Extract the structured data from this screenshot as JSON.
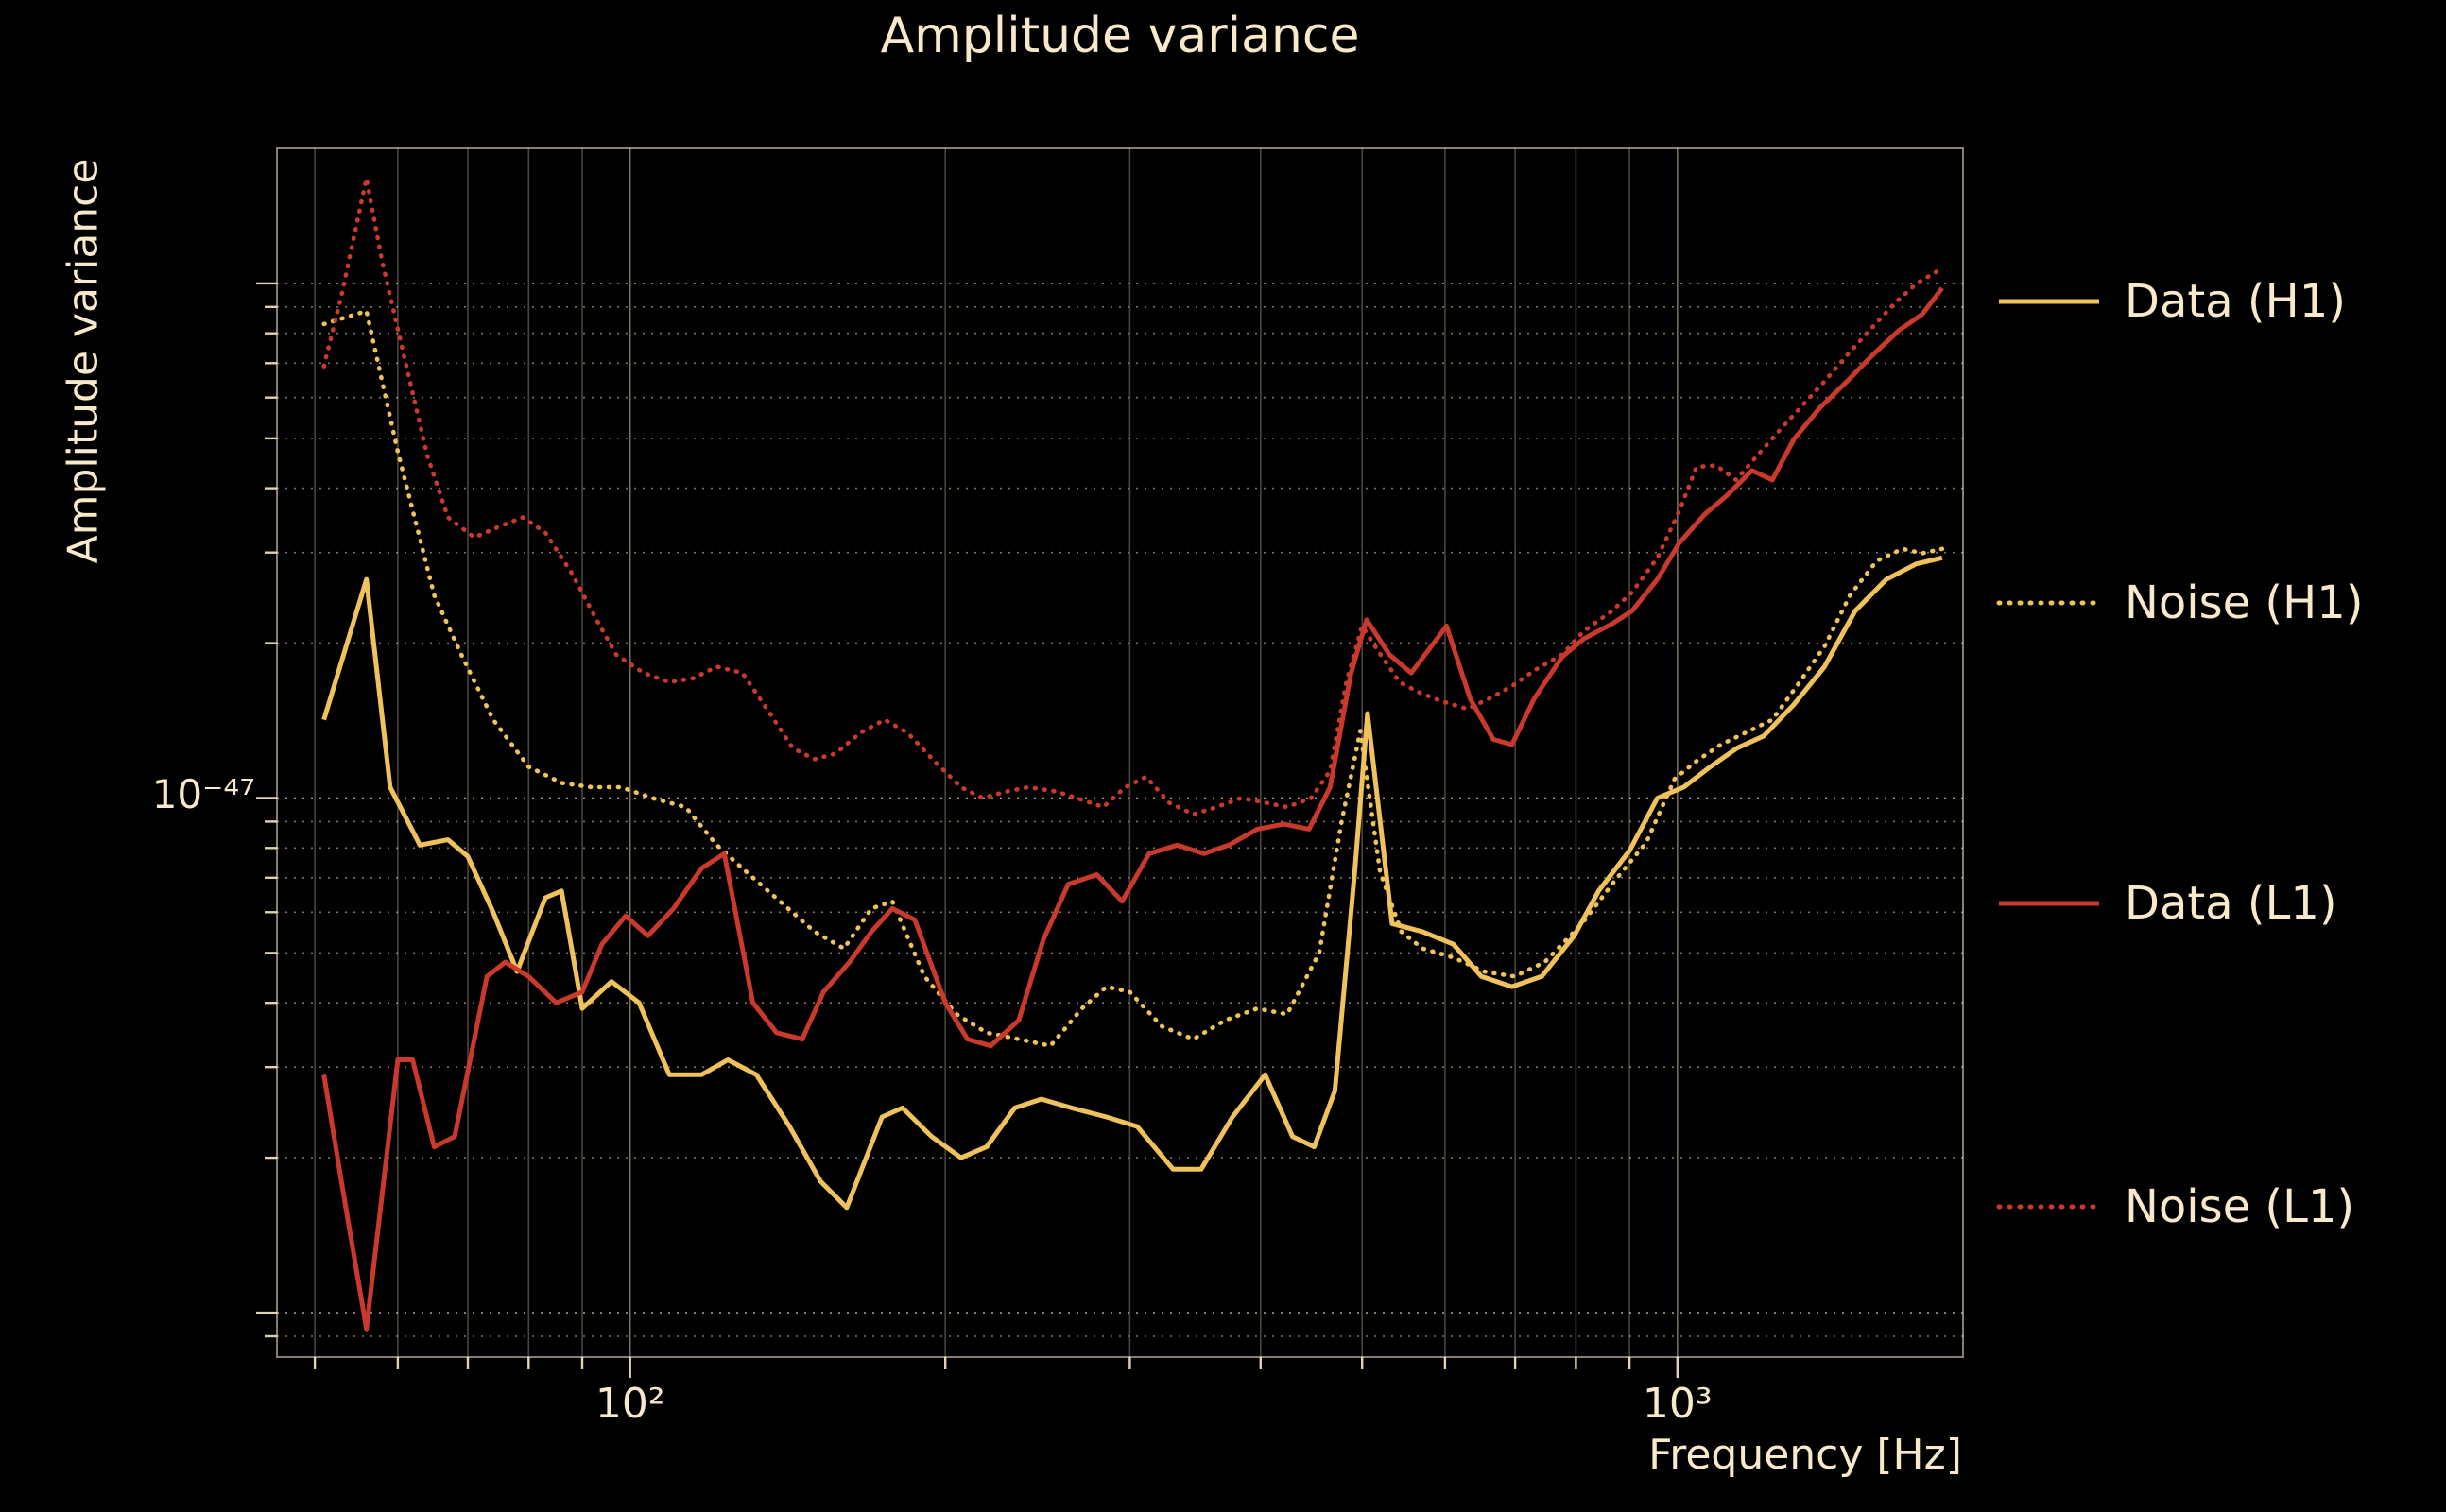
{
  "title": "Amplitude variance",
  "xlabel": "Frequency [Hz]",
  "ylabel": "Amplitude variance",
  "x_ticks": [
    {
      "value": 100,
      "label": "10²"
    },
    {
      "value": 1000,
      "label": "10³"
    }
  ],
  "y_ticks": [
    {
      "value_1e47": 1,
      "label": "10⁻⁴⁷"
    }
  ],
  "colors": {
    "background": "#000000",
    "text": "#f7e9c9",
    "grid": "#f7e9c9",
    "gold": "#efc25c",
    "red": "#c9392c"
  },
  "legend": [
    {
      "label": "Data (H1)",
      "color": "#efc25c",
      "linestyle": "solid"
    },
    {
      "label": "Noise (H1)",
      "color": "#efc25c",
      "linestyle": "dotted"
    },
    {
      "label": "Data (L1)",
      "color": "#c9392c",
      "linestyle": "solid"
    },
    {
      "label": "Noise (L1)",
      "color": "#c9392c",
      "linestyle": "dotted"
    }
  ],
  "chart_data": {
    "type": "line",
    "title": "Amplitude variance",
    "xlabel": "Frequency [Hz]",
    "ylabel": "Amplitude variance",
    "xscale": "log",
    "yscale": "log",
    "x_unit": "Hz",
    "y_unit": "1e-47",
    "xlim": [
      46,
      1874
    ],
    "ylim_1e47": [
      0.082,
      18.3
    ],
    "grid": {
      "x_lines": [
        50,
        60,
        70,
        80,
        90,
        100,
        200,
        300,
        400,
        500,
        600,
        700,
        800,
        900,
        1000
      ],
      "x_major": [
        100,
        1000
      ],
      "y_lines": [
        0.09,
        0.1,
        0.2,
        0.3,
        0.4,
        0.5,
        0.6,
        0.7,
        0.8,
        0.9,
        1,
        2,
        3,
        4,
        5,
        6,
        7,
        8,
        9,
        10
      ],
      "y_major": [
        0.1,
        1,
        10
      ],
      "legend_position": "right-outside"
    },
    "series": [
      {
        "name": "Data (H1)",
        "color": "#efc25c",
        "linestyle": "solid",
        "x": [
          51,
          56,
          59,
          63,
          67,
          70,
          74,
          78,
          83,
          86,
          90,
          96,
          102,
          109,
          117,
          124,
          132,
          142,
          152,
          161,
          174,
          182,
          194,
          207,
          219,
          233,
          247,
          264,
          285,
          305,
          330,
          351,
          376,
          404,
          429,
          450,
          471,
          492,
          506,
          534,
          571,
          611,
          650,
          695,
          742,
          797,
          841,
          900,
          957,
          1014,
          1075,
          1140,
          1209,
          1292,
          1382,
          1478,
          1583,
          1690,
          1790
        ],
        "y": [
          1.42,
          2.66,
          1.05,
          0.81,
          0.83,
          0.77,
          0.6,
          0.46,
          0.64,
          0.66,
          0.39,
          0.44,
          0.4,
          0.29,
          0.29,
          0.31,
          0.29,
          0.23,
          0.18,
          0.16,
          0.24,
          0.25,
          0.22,
          0.2,
          0.21,
          0.25,
          0.26,
          0.25,
          0.24,
          0.23,
          0.19,
          0.19,
          0.24,
          0.29,
          0.22,
          0.21,
          0.27,
          0.72,
          1.46,
          0.57,
          0.55,
          0.52,
          0.45,
          0.43,
          0.45,
          0.54,
          0.66,
          0.79,
          1.0,
          1.05,
          1.15,
          1.25,
          1.32,
          1.52,
          1.8,
          2.31,
          2.66,
          2.85,
          2.93
        ]
      },
      {
        "name": "Noise (H1)",
        "color": "#efc25c",
        "linestyle": "dotted",
        "x": [
          51,
          56,
          60,
          65,
          69,
          74,
          80,
          86,
          92,
          98,
          105,
          113,
          121,
          130,
          139,
          150,
          160,
          170,
          178,
          191,
          205,
          219,
          235,
          252,
          270,
          285,
          300,
          322,
          345,
          370,
          397,
          424,
          455,
          478,
          498,
          520,
          545,
          571,
          611,
          654,
          699,
          747,
          811,
          871,
          934,
          994,
          1043,
          1100,
          1162,
          1232,
          1300,
          1382,
          1462,
          1550,
          1640,
          1713,
          1790
        ],
        "y": [
          8.34,
          8.84,
          4.71,
          2.48,
          1.9,
          1.42,
          1.15,
          1.07,
          1.05,
          1.05,
          1.0,
          0.96,
          0.81,
          0.71,
          0.63,
          0.55,
          0.51,
          0.61,
          0.63,
          0.45,
          0.38,
          0.35,
          0.34,
          0.33,
          0.39,
          0.43,
          0.42,
          0.36,
          0.34,
          0.37,
          0.39,
          0.38,
          0.5,
          0.9,
          1.35,
          0.72,
          0.55,
          0.51,
          0.49,
          0.46,
          0.45,
          0.48,
          0.57,
          0.69,
          0.82,
          1.09,
          1.18,
          1.27,
          1.34,
          1.42,
          1.65,
          1.97,
          2.48,
          2.89,
          3.05,
          2.99,
          3.05
        ]
      },
      {
        "name": "Data (L1)",
        "color": "#c9392c",
        "linestyle": "solid",
        "x": [
          51,
          53,
          56,
          60,
          62,
          65,
          68,
          73,
          76,
          80,
          85,
          90,
          94,
          99,
          104,
          110,
          117,
          123,
          131,
          138,
          146,
          153,
          162,
          170,
          178,
          187,
          200,
          210,
          221,
          235,
          248,
          262,
          279,
          295,
          313,
          333,
          353,
          373,
          397,
          421,
          445,
          466,
          488,
          505,
          531,
          557,
          582,
          602,
          634,
          667,
          695,
          730,
          776,
          814,
          866,
          905,
          957,
          1004,
          1062,
          1115,
          1178,
          1232,
          1292,
          1368,
          1452,
          1535,
          1628,
          1713,
          1790
        ],
        "y": [
          0.29,
          0.18,
          0.093,
          0.31,
          0.31,
          0.21,
          0.22,
          0.45,
          0.48,
          0.45,
          0.4,
          0.42,
          0.52,
          0.59,
          0.54,
          0.61,
          0.73,
          0.78,
          0.4,
          0.35,
          0.34,
          0.42,
          0.48,
          0.55,
          0.61,
          0.58,
          0.4,
          0.34,
          0.33,
          0.37,
          0.53,
          0.68,
          0.71,
          0.63,
          0.78,
          0.81,
          0.78,
          0.81,
          0.87,
          0.89,
          0.87,
          1.05,
          1.75,
          2.22,
          1.9,
          1.75,
          1.97,
          2.16,
          1.56,
          1.3,
          1.27,
          1.56,
          1.88,
          2.04,
          2.18,
          2.31,
          2.66,
          3.13,
          3.56,
          3.87,
          4.33,
          4.15,
          4.98,
          5.73,
          6.45,
          7.25,
          8.11,
          8.71,
          9.79
        ]
      },
      {
        "name": "Noise (L1)",
        "color": "#c9392c",
        "linestyle": "dotted",
        "x": [
          51,
          53,
          56,
          58,
          61,
          64,
          67,
          71,
          75,
          79,
          83,
          88,
          93,
          97,
          103,
          109,
          115,
          121,
          128,
          136,
          143,
          150,
          157,
          166,
          175,
          184,
          196,
          207,
          217,
          229,
          240,
          255,
          267,
          283,
          297,
          311,
          327,
          345,
          363,
          383,
          404,
          424,
          447,
          466,
          483,
          500,
          518,
          543,
          568,
          597,
          630,
          661,
          695,
          730,
          776,
          814,
          866,
          905,
          957,
          1004,
          1043,
          1089,
          1138,
          1193,
          1257,
          1310,
          1382,
          1452,
          1535,
          1612,
          1690,
          1790
        ],
        "y": [
          6.9,
          9.46,
          16.0,
          11.0,
          7.06,
          4.64,
          3.51,
          3.21,
          3.37,
          3.51,
          3.28,
          2.73,
          2.21,
          1.9,
          1.75,
          1.68,
          1.71,
          1.8,
          1.75,
          1.46,
          1.25,
          1.19,
          1.22,
          1.34,
          1.42,
          1.34,
          1.17,
          1.05,
          1.0,
          1.03,
          1.05,
          1.03,
          1.0,
          0.96,
          1.05,
          1.1,
          0.98,
          0.93,
          0.96,
          1.0,
          0.98,
          0.96,
          1.0,
          1.13,
          1.68,
          2.16,
          1.93,
          1.68,
          1.6,
          1.54,
          1.49,
          1.56,
          1.65,
          1.77,
          1.9,
          2.11,
          2.31,
          2.51,
          2.93,
          3.61,
          4.4,
          4.43,
          4.15,
          4.64,
          5.23,
          5.73,
          6.45,
          7.25,
          8.22,
          9.14,
          9.98,
          10.7
        ]
      }
    ]
  }
}
